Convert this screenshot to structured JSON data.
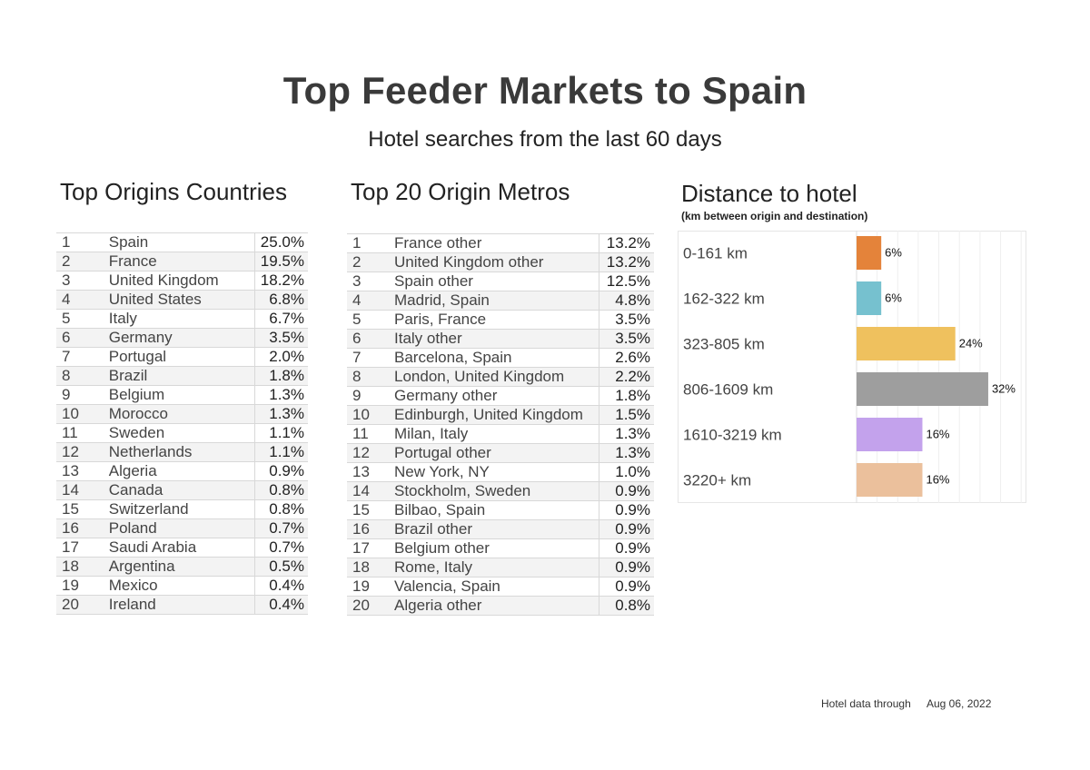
{
  "header": {
    "title": "Top Feeder Markets to Spain",
    "subtitle": "Hotel searches from the last 60 days"
  },
  "countries": {
    "title": "Top Origins Countries",
    "rows": [
      {
        "rank": "1",
        "name": "Spain",
        "value": "25.0%"
      },
      {
        "rank": "2",
        "name": "France",
        "value": "19.5%"
      },
      {
        "rank": "3",
        "name": "United Kingdom",
        "value": "18.2%"
      },
      {
        "rank": "4",
        "name": "United States",
        "value": "6.8%"
      },
      {
        "rank": "5",
        "name": "Italy",
        "value": "6.7%"
      },
      {
        "rank": "6",
        "name": "Germany",
        "value": "3.5%"
      },
      {
        "rank": "7",
        "name": "Portugal",
        "value": "2.0%"
      },
      {
        "rank": "8",
        "name": "Brazil",
        "value": "1.8%"
      },
      {
        "rank": "9",
        "name": "Belgium",
        "value": "1.3%"
      },
      {
        "rank": "10",
        "name": "Morocco",
        "value": "1.3%"
      },
      {
        "rank": "11",
        "name": "Sweden",
        "value": "1.1%"
      },
      {
        "rank": "12",
        "name": "Netherlands",
        "value": "1.1%"
      },
      {
        "rank": "13",
        "name": "Algeria",
        "value": "0.9%"
      },
      {
        "rank": "14",
        "name": "Canada",
        "value": "0.8%"
      },
      {
        "rank": "15",
        "name": "Switzerland",
        "value": "0.8%"
      },
      {
        "rank": "16",
        "name": "Poland",
        "value": "0.7%"
      },
      {
        "rank": "17",
        "name": "Saudi Arabia",
        "value": "0.7%"
      },
      {
        "rank": "18",
        "name": "Argentina",
        "value": "0.5%"
      },
      {
        "rank": "19",
        "name": "Mexico",
        "value": "0.4%"
      },
      {
        "rank": "20",
        "name": "Ireland",
        "value": "0.4%"
      }
    ]
  },
  "metros": {
    "title": "Top 20 Origin Metros",
    "rows": [
      {
        "rank": "1",
        "name": "France other",
        "value": "13.2%"
      },
      {
        "rank": "2",
        "name": "United Kingdom other",
        "value": "13.2%"
      },
      {
        "rank": "3",
        "name": "Spain other",
        "value": "12.5%"
      },
      {
        "rank": "4",
        "name": "Madrid, Spain",
        "value": "4.8%"
      },
      {
        "rank": "5",
        "name": "Paris, France",
        "value": "3.5%"
      },
      {
        "rank": "6",
        "name": "Italy other",
        "value": "3.5%"
      },
      {
        "rank": "7",
        "name": "Barcelona, Spain",
        "value": "2.6%"
      },
      {
        "rank": "8",
        "name": "London, United Kingdom",
        "value": "2.2%"
      },
      {
        "rank": "9",
        "name": "Germany other",
        "value": "1.8%"
      },
      {
        "rank": "10",
        "name": "Edinburgh, United Kingdom",
        "value": "1.5%"
      },
      {
        "rank": "11",
        "name": "Milan, Italy",
        "value": "1.3%"
      },
      {
        "rank": "12",
        "name": "Portugal other",
        "value": "1.3%"
      },
      {
        "rank": "13",
        "name": "New York, NY",
        "value": "1.0%"
      },
      {
        "rank": "14",
        "name": "Stockholm, Sweden",
        "value": "0.9%"
      },
      {
        "rank": "15",
        "name": "Bilbao, Spain",
        "value": "0.9%"
      },
      {
        "rank": "16",
        "name": "Brazil other",
        "value": "0.9%"
      },
      {
        "rank": "17",
        "name": "Belgium other",
        "value": "0.9%"
      },
      {
        "rank": "18",
        "name": "Rome, Italy",
        "value": "0.9%"
      },
      {
        "rank": "19",
        "name": "Valencia, Spain",
        "value": "0.9%"
      },
      {
        "rank": "20",
        "name": "Algeria other",
        "value": "0.8%"
      }
    ]
  },
  "distance": {
    "title": "Distance to hotel",
    "note": "(km between origin and destination)"
  },
  "chart_data": {
    "type": "bar",
    "orientation": "horizontal",
    "title": "Distance to hotel",
    "subtitle": "(km between origin and destination)",
    "categories": [
      "0-161 km",
      "162-322 km",
      "323-805 km",
      "806-1609 km",
      "1610-3219 km",
      "3220+ km"
    ],
    "values": [
      6,
      6,
      24,
      32,
      16,
      16
    ],
    "labels": [
      "6%",
      "6%",
      "24%",
      "32%",
      "16%",
      "16%"
    ],
    "colors": [
      "#e4833a",
      "#76c1cf",
      "#efc15e",
      "#9e9e9e",
      "#c3a2ec",
      "#ebc09c"
    ],
    "xlim": [
      0,
      40
    ],
    "grid": true
  },
  "footer": {
    "label": "Hotel data through",
    "date": "Aug 06, 2022"
  }
}
